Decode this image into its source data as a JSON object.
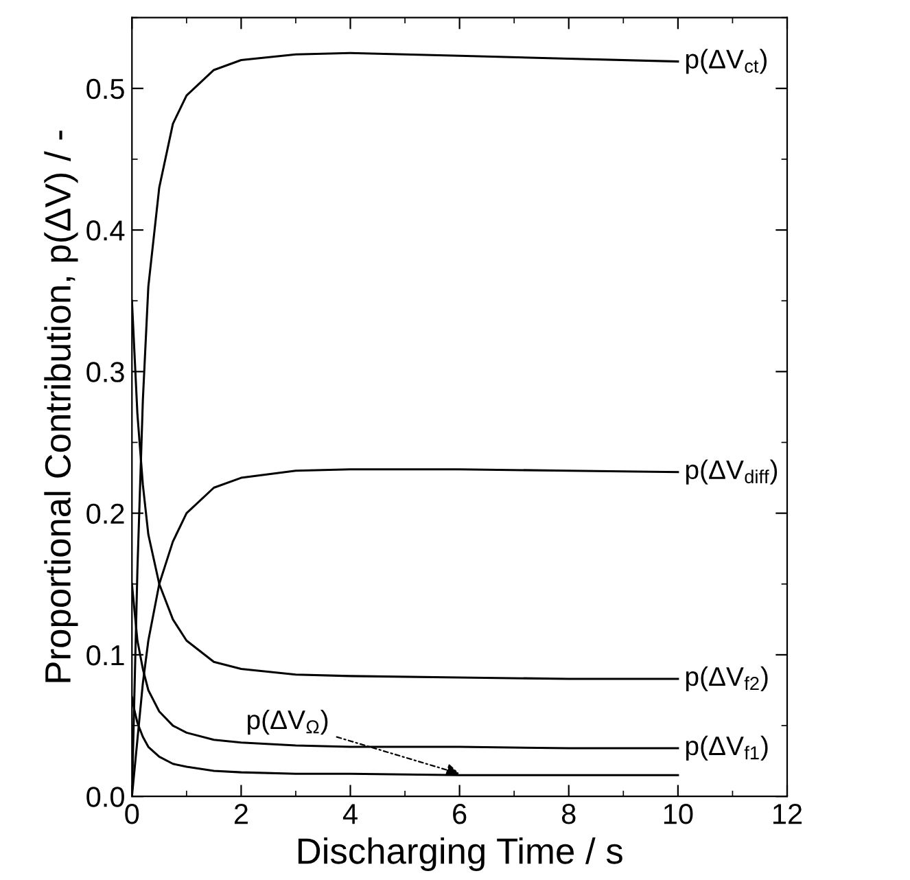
{
  "chart_data": {
    "type": "line",
    "xlabel": "Discharging Time / s",
    "ylabel": "Proportional Contribution, p(ΔV) / -",
    "xlim": [
      0,
      12
    ],
    "xticks": [
      0,
      2,
      4,
      6,
      8,
      10,
      12
    ],
    "ylim": [
      0,
      0.55
    ],
    "yticks": [
      {
        "value": 0,
        "label": "0.0"
      },
      0.1,
      0.2,
      0.3,
      0.4,
      0.5
    ],
    "grid": false,
    "legend": "right",
    "marker": "none",
    "line_style": "solid",
    "x": [
      0,
      0.05,
      0.1,
      0.2,
      0.3,
      0.5,
      0.75,
      1,
      1.5,
      2,
      3,
      4,
      6,
      8,
      10
    ],
    "series": [
      {
        "name": "p(ΔV$_{ct}$)",
        "color": "#000000",
        "values": [
          0,
          0.08,
          0.16,
          0.28,
          0.36,
          0.43,
          0.475,
          0.495,
          0.513,
          0.52,
          0.524,
          0.525,
          0.523,
          0.521,
          0.519
        ]
      },
      {
        "name": "p(ΔV$_{diff}$)",
        "color": "#000000",
        "values": [
          0,
          0.02,
          0.04,
          0.08,
          0.11,
          0.15,
          0.18,
          0.2,
          0.218,
          0.225,
          0.23,
          0.231,
          0.231,
          0.23,
          0.229
        ]
      },
      {
        "name": "p(ΔV$_{f2}$)",
        "color": "#000000",
        "values": [
          0.35,
          0.31,
          0.27,
          0.22,
          0.185,
          0.15,
          0.125,
          0.11,
          0.095,
          0.09,
          0.086,
          0.085,
          0.084,
          0.083,
          0.083
        ]
      },
      {
        "name": "p(ΔV$_{f1}$)",
        "color": "#000000",
        "values": [
          0.15,
          0.13,
          0.11,
          0.09,
          0.075,
          0.06,
          0.05,
          0.045,
          0.04,
          0.038,
          0.036,
          0.035,
          0.035,
          0.034,
          0.034
        ]
      },
      {
        "color": "#000000",
        "values": [
          0.07,
          0.06,
          0.052,
          0.042,
          0.035,
          0.028,
          0.023,
          0.021,
          0.018,
          0.017,
          0.016,
          0.016,
          0.015,
          0.015,
          0.015
        ]
      }
    ],
    "annotations": [
      {
        "text": "p(ΔV$_{Ω}$)",
        "x": 6,
        "y": 0.016
      }
    ]
  }
}
